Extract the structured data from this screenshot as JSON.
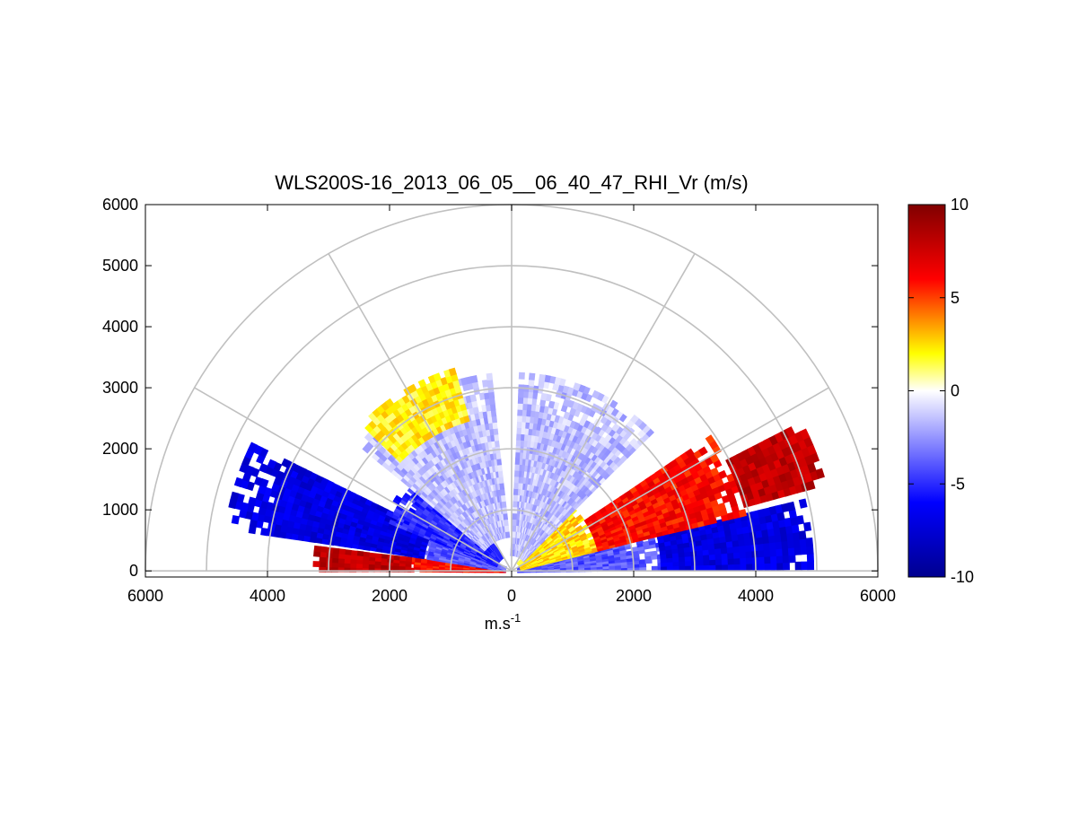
{
  "chart_data": {
    "type": "heatmap",
    "title": "WLS200S-16_2013_06_05__06_40_47_RHI_Vr (m/s)",
    "xlabel": "m.s",
    "xlabel_superscript": "-1",
    "ylabel": "",
    "x_tick_labels": [
      "6000",
      "4000",
      "2000",
      "0",
      "2000",
      "4000",
      "6000"
    ],
    "x_tick_values": [
      -6000,
      -4000,
      -2000,
      0,
      2000,
      4000,
      6000
    ],
    "y_tick_labels": [
      "0",
      "1000",
      "2000",
      "3000",
      "4000",
      "5000",
      "6000"
    ],
    "y_tick_values": [
      0,
      1000,
      2000,
      3000,
      4000,
      5000,
      6000
    ],
    "xlim": [
      -6000,
      6000
    ],
    "ylim": [
      -100,
      6000
    ],
    "polar_grid": {
      "range_rings": [
        1000,
        2000,
        3000,
        4000,
        5000,
        6000
      ],
      "spoke_angles_deg": [
        0,
        30,
        60,
        90,
        120,
        150,
        180
      ]
    },
    "colorbar": {
      "min": -10,
      "max": 10,
      "tick_labels": [
        "10",
        "5",
        "0",
        "-5",
        "-10"
      ],
      "tick_values": [
        10,
        5,
        0,
        -5,
        -10
      ],
      "colors": [
        "#00008f",
        "#0000ff",
        "#ffffff",
        "#ffff00",
        "#ff0000",
        "#800000"
      ]
    },
    "velocity_regions": [
      {
        "elev_deg": [
          0.5,
          8
        ],
        "range": [
          150,
          1700
        ],
        "vr": 6,
        "side": "left"
      },
      {
        "elev_deg": [
          0.5,
          8
        ],
        "range": [
          1700,
          3300
        ],
        "vr": 8,
        "side": "left"
      },
      {
        "elev_deg": [
          9,
          22
        ],
        "range": [
          150,
          1500
        ],
        "vr": -4,
        "side": "left"
      },
      {
        "elev_deg": [
          9,
          26
        ],
        "range": [
          1500,
          4800
        ],
        "vr": -7,
        "side": "left"
      },
      {
        "elev_deg": [
          22,
          55
        ],
        "range": [
          300,
          2300
        ],
        "vr": -5,
        "side": "left"
      },
      {
        "elev_deg": [
          40,
          85
        ],
        "range": [
          600,
          3300
        ],
        "vr": -1.5,
        "side": "left"
      },
      {
        "elev_deg": [
          45,
          75
        ],
        "range": [
          2600,
          3500
        ],
        "vr": 2,
        "side": "left"
      },
      {
        "elev_deg": [
          1,
          14
        ],
        "range": [
          150,
          2500
        ],
        "vr": -4,
        "side": "right"
      },
      {
        "elev_deg": [
          1,
          14
        ],
        "range": [
          2500,
          5000
        ],
        "vr": -7,
        "side": "right"
      },
      {
        "elev_deg": [
          14,
          45
        ],
        "range": [
          200,
          1500
        ],
        "vr": 2.5,
        "side": "right"
      },
      {
        "elev_deg": [
          14,
          35
        ],
        "range": [
          1500,
          4000
        ],
        "vr": 6,
        "side": "right"
      },
      {
        "elev_deg": [
          16,
          28
        ],
        "range": [
          4000,
          5400
        ],
        "vr": 8,
        "side": "right"
      },
      {
        "elev_deg": [
          45,
          88
        ],
        "range": [
          300,
          3300
        ],
        "vr": -1.5,
        "side": "right"
      }
    ]
  }
}
